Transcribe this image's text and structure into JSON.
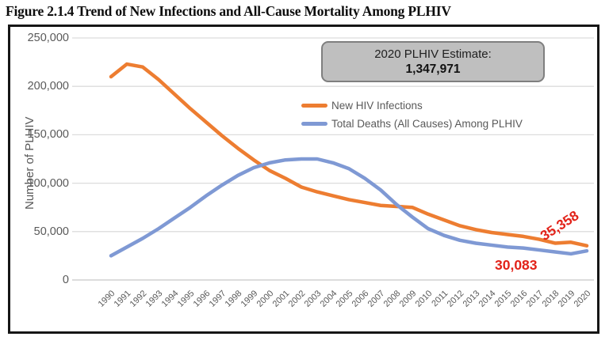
{
  "figure_title": "Figure 2.1.4 Trend of New Infections and All-Cause Mortality Among PLHIV",
  "estimate_box": {
    "line1": "2020 PLHIV Estimate:",
    "line2": "1,347,971"
  },
  "colors": {
    "infections_line": "#ED7D31",
    "deaths_line": "#7F99D4",
    "end_label_red": "#E2231A",
    "axis_text": "#595959",
    "gridline": "#DCDCDC",
    "zero_line": "#C6C6C6",
    "estimate_box_fill": "#BFBFBF",
    "estimate_box_border": "#7F7F7F"
  },
  "chart_data": {
    "type": "line",
    "title": "Figure 2.1.4 Trend of New Infections and All-Cause Mortality Among PLHIV",
    "xlabel": "",
    "ylabel": "Number of PLHIV",
    "ylim": [
      0,
      250000
    ],
    "ytick_labels": [
      "0",
      "50,000",
      "100,000",
      "150,000",
      "200,000",
      "250,000"
    ],
    "ytick_values": [
      0,
      50000,
      100000,
      150000,
      200000,
      250000
    ],
    "grid": "horizontal",
    "legend_position": "inside-top-center",
    "x": [
      1990,
      1991,
      1992,
      1993,
      1994,
      1995,
      1996,
      1997,
      1998,
      1999,
      2000,
      2001,
      2002,
      2003,
      2004,
      2005,
      2006,
      2007,
      2008,
      2009,
      2010,
      2011,
      2012,
      2013,
      2014,
      2015,
      2016,
      2017,
      2018,
      2019,
      2020
    ],
    "series": [
      {
        "name": "New HIV Infections",
        "color": "#ED7D31",
        "values": [
          210000,
          223000,
          220000,
          207000,
          192000,
          177000,
          163000,
          149000,
          136000,
          124000,
          113000,
          105000,
          96000,
          91000,
          87000,
          83000,
          80000,
          77000,
          76000,
          75000,
          68000,
          62000,
          56000,
          52000,
          49000,
          47000,
          45000,
          42000,
          38000,
          39000,
          35358
        ]
      },
      {
        "name": "Total Deaths (All Causes) Among PLHIV",
        "color": "#7F99D4",
        "values": [
          25000,
          34000,
          43000,
          53000,
          64000,
          75000,
          87000,
          98000,
          108000,
          116000,
          121000,
          124000,
          125000,
          125000,
          121000,
          115000,
          105000,
          93000,
          78000,
          65000,
          53000,
          46000,
          41000,
          38000,
          36000,
          34000,
          33000,
          31000,
          29000,
          27000,
          30083
        ]
      }
    ],
    "annotations": [
      {
        "text": "35,358",
        "series": "New HIV Infections",
        "year": 2020
      },
      {
        "text": "30,083",
        "series": "Total Deaths (All Causes) Among PLHIV",
        "year": 2020
      }
    ]
  }
}
